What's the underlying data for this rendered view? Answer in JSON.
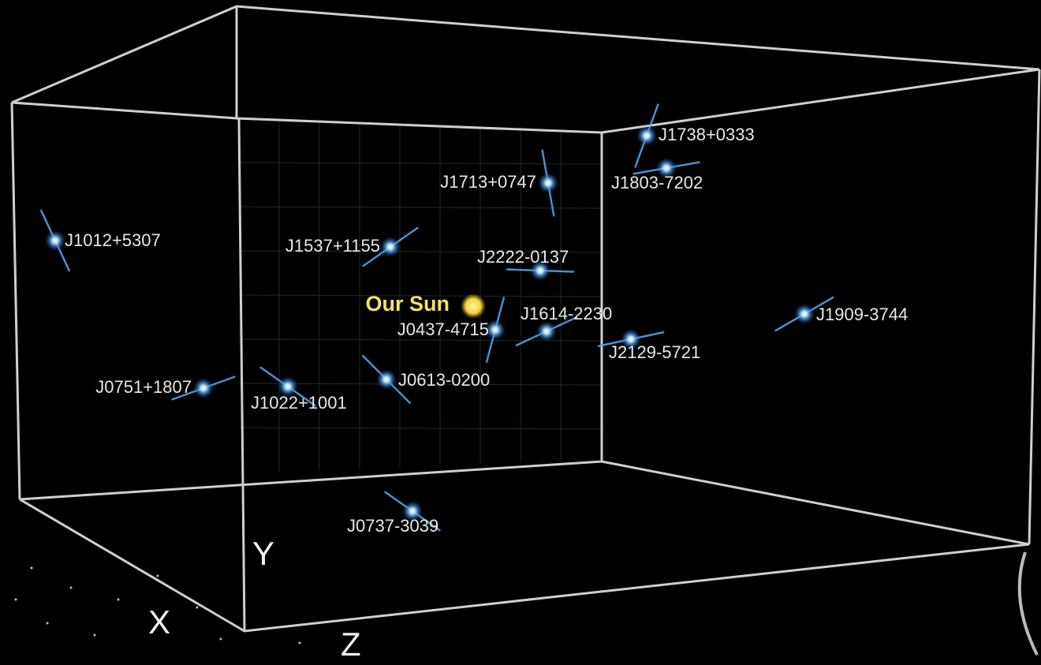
{
  "pulsars": [
    "J1738+0333",
    "J1803-7202",
    "J1713+0747",
    "J1012+5307",
    "J1537+1155",
    "J2222-0137",
    "J1614-2230",
    "J0437-4715",
    "J1909-3744",
    "J2129-5721",
    "J0751+1807",
    "J1022+1001",
    "J0613-0200",
    "J0737-3039"
  ],
  "sun": "Our Sun",
  "axes": {
    "x": "X",
    "y": "Y",
    "z": "Z"
  }
}
